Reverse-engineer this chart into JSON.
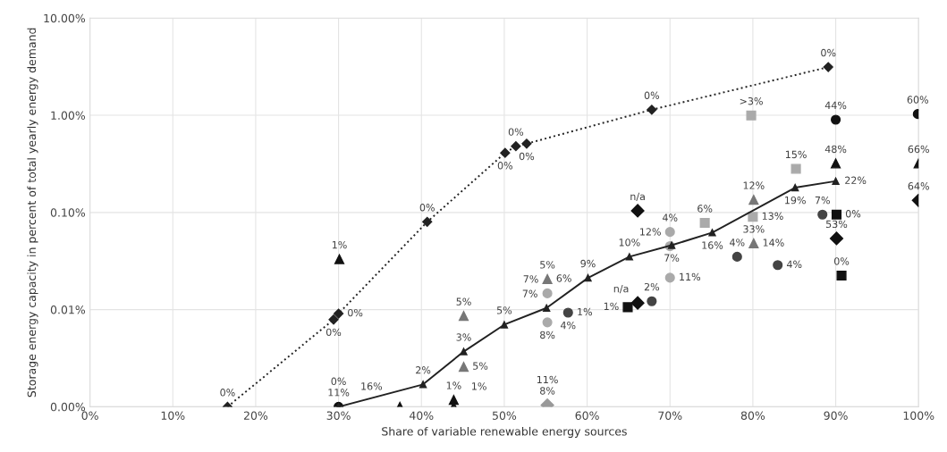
{
  "chart_data": {
    "type": "scatter",
    "xlabel": "Share of variable renewable energy sources",
    "ylabel": "Storage energy capacity in percent of total yearly energy demand",
    "log": "y",
    "grid": true,
    "xlim": [
      0,
      100
    ],
    "xticks": [
      {
        "value": 0,
        "label": "0%"
      },
      {
        "value": 10,
        "label": "10%"
      },
      {
        "value": 20,
        "label": "20%"
      },
      {
        "value": 30,
        "label": "30%"
      },
      {
        "value": 40,
        "label": "40%"
      },
      {
        "value": 50,
        "label": "50%"
      },
      {
        "value": 60,
        "label": "60%"
      },
      {
        "value": 70,
        "label": "70%"
      },
      {
        "value": 80,
        "label": "80%"
      },
      {
        "value": 90,
        "label": "90%"
      },
      {
        "value": 100,
        "label": "100%"
      }
    ],
    "ylim": [
      0.001,
      10
    ],
    "yticks": [
      {
        "value": 0.001,
        "label": "0.00%"
      },
      {
        "value": 0.01,
        "label": "0.01%"
      },
      {
        "value": 0.1,
        "label": "0.10%"
      },
      {
        "value": 1,
        "label": "1.00%"
      },
      {
        "value": 10,
        "label": "10.00%"
      }
    ],
    "series": [
      {
        "type": "line",
        "line_style": "dotted",
        "marker": "diamond",
        "color": "#222222",
        "x": [
          16.6,
          29.4,
          30.0,
          40.7,
          50.1,
          51.4,
          52.7,
          67.8,
          89.1
        ],
        "values": [
          0.001,
          0.0079,
          0.0091,
          0.08,
          0.41,
          0.48,
          0.51,
          1.14,
          3.13
        ]
      },
      {
        "type": "line",
        "line_style": "solid",
        "marker": "triangle",
        "color": "#222222",
        "x": [
          30.0,
          40.2,
          45.1,
          50.0,
          55.1,
          60.1,
          65.1,
          70.2,
          75.1,
          85.1,
          90.0
        ],
        "values": [
          0.001,
          0.0017,
          0.0037,
          0.007,
          0.0104,
          0.0212,
          0.035,
          0.046,
          0.062,
          0.18,
          0.21
        ]
      },
      {
        "marker": "triangle",
        "color": "#111111",
        "x": [
          30.1,
          37.4,
          43.9,
          43.9,
          90.0,
          100.0
        ],
        "values": [
          0.033,
          0.001,
          0.00118,
          0.001,
          0.319,
          0.319
        ]
      },
      {
        "marker": "triangle",
        "color": "#777777",
        "x": [
          45.1,
          45.1,
          55.2,
          80.1,
          80.1
        ],
        "values": [
          0.0086,
          0.00258,
          0.0206,
          0.135,
          0.048
        ]
      },
      {
        "marker": "circle",
        "color": "#111111",
        "x": [
          30.0,
          90.0,
          99.9
        ],
        "values": [
          0.001,
          0.9,
          1.03
        ]
      },
      {
        "marker": "circle",
        "color": "#444444",
        "x": [
          57.7,
          67.8,
          78.1,
          83.0,
          88.4
        ],
        "values": [
          0.0093,
          0.0122,
          0.035,
          0.0287,
          0.095
        ]
      },
      {
        "marker": "circle",
        "color": "#aaaaaa",
        "x": [
          55.2,
          55.2,
          70.0,
          70.0,
          70.0
        ],
        "values": [
          0.0147,
          0.0074,
          0.063,
          0.0213,
          0.045
        ]
      },
      {
        "marker": "diamond",
        "color": "#111111",
        "x": [
          66.1,
          66.1,
          90.1,
          100.0
        ],
        "values": [
          0.0117,
          0.104,
          0.054,
          0.133
        ]
      },
      {
        "marker": "diamond",
        "color": "#999999",
        "x": [
          55.2
        ],
        "values": [
          0.00104
        ]
      },
      {
        "marker": "square",
        "color": "#111111",
        "x": [
          64.9,
          90.1,
          90.7
        ],
        "values": [
          0.0106,
          0.095,
          0.0224
        ]
      },
      {
        "marker": "square",
        "color": "#aaaaaa",
        "x": [
          79.8,
          74.2,
          80.0,
          85.2
        ],
        "values": [
          0.995,
          0.078,
          0.09,
          0.281
        ]
      }
    ],
    "annotations": [
      {
        "text": "0%",
        "x": 16.6,
        "y": 0.001
      },
      {
        "text": "0%",
        "x": 29.4,
        "y": 0.0079
      },
      {
        "text": "0%",
        "x": 30.0,
        "y": 0.0091
      },
      {
        "text": "0%",
        "x": 40.7,
        "y": 0.08
      },
      {
        "text": "0%",
        "x": 50.1,
        "y": 0.41
      },
      {
        "text": "0%",
        "x": 51.4,
        "y": 0.48
      },
      {
        "text": "0%",
        "x": 52.7,
        "y": 0.51
      },
      {
        "text": "0%",
        "x": 67.8,
        "y": 1.14
      },
      {
        "text": "0%",
        "x": 89.1,
        "y": 3.13
      },
      {
        "text": "11%",
        "x": 30.0,
        "y": 0.001
      },
      {
        "text": "2%",
        "x": 40.2,
        "y": 0.0017
      },
      {
        "text": "3%",
        "x": 45.1,
        "y": 0.0037
      },
      {
        "text": "5%",
        "x": 50.0,
        "y": 0.007
      },
      {
        "text": "7%",
        "x": 55.1,
        "y": 0.0104
      },
      {
        "text": "9%",
        "x": 60.1,
        "y": 0.0212
      },
      {
        "text": "10%",
        "x": 65.1,
        "y": 0.035
      },
      {
        "text": "7%",
        "x": 70.2,
        "y": 0.046
      },
      {
        "text": "16%",
        "x": 75.1,
        "y": 0.062
      },
      {
        "text": "19%",
        "x": 85.1,
        "y": 0.18
      },
      {
        "text": "22%",
        "x": 90.0,
        "y": 0.21
      },
      {
        "text": "1%",
        "x": 30.1,
        "y": 0.033
      },
      {
        "text": "16%",
        "x": 37.4,
        "y": 0.001
      },
      {
        "text": "1%",
        "x": 43.9,
        "y": 0.00118
      },
      {
        "text": "1%",
        "x": 43.9,
        "y": 0.001
      },
      {
        "text": "48%",
        "x": 90.0,
        "y": 0.319
      },
      {
        "text": "66%",
        "x": 100.0,
        "y": 0.319
      },
      {
        "text": "5%",
        "x": 45.1,
        "y": 0.0086
      },
      {
        "text": "5%",
        "x": 45.1,
        "y": 0.00258
      },
      {
        "text": "5%",
        "x": 55.2,
        "y": 0.0206
      },
      {
        "text": "6%",
        "x": 55.2,
        "y": 0.0206
      },
      {
        "text": "12%",
        "x": 80.1,
        "y": 0.135
      },
      {
        "text": "33%",
        "x": 80.1,
        "y": 0.048
      },
      {
        "text": "14%",
        "x": 80.1,
        "y": 0.048
      },
      {
        "text": "0%",
        "x": 30.0,
        "y": 0.001
      },
      {
        "text": "44%",
        "x": 90.0,
        "y": 0.9
      },
      {
        "text": "60%",
        "x": 99.9,
        "y": 1.03
      },
      {
        "text": "1%",
        "x": 57.7,
        "y": 0.0093
      },
      {
        "text": "4%",
        "x": 57.7,
        "y": 0.0093
      },
      {
        "text": "2%",
        "x": 67.8,
        "y": 0.0122
      },
      {
        "text": "4%",
        "x": 78.1,
        "y": 0.035
      },
      {
        "text": "4%",
        "x": 83.0,
        "y": 0.0287
      },
      {
        "text": "7%",
        "x": 88.4,
        "y": 0.095
      },
      {
        "text": "7%",
        "x": 55.2,
        "y": 0.0147
      },
      {
        "text": "8%",
        "x": 55.2,
        "y": 0.0074
      },
      {
        "text": "4%",
        "x": 70.0,
        "y": 0.063
      },
      {
        "text": "11%",
        "x": 70.0,
        "y": 0.0213
      },
      {
        "text": "12%",
        "x": 70.0,
        "y": 0.045
      },
      {
        "text": "n/a",
        "x": 66.1,
        "y": 0.0117
      },
      {
        "text": "n/a",
        "x": 66.1,
        "y": 0.104
      },
      {
        "text": "53%",
        "x": 90.1,
        "y": 0.054
      },
      {
        "text": "64%",
        "x": 100.0,
        "y": 0.133
      },
      {
        "text": "8%",
        "x": 55.2,
        "y": 0.00104
      },
      {
        "text": "11%",
        "x": 55.2,
        "y": 0.00104
      },
      {
        "text": "1%",
        "x": 64.9,
        "y": 0.0106
      },
      {
        "text": "0%",
        "x": 90.1,
        "y": 0.095
      },
      {
        "text": "0%",
        "x": 90.7,
        "y": 0.0224
      },
      {
        "text": ">3%",
        "x": 79.8,
        "y": 0.995
      },
      {
        "text": "6%",
        "x": 74.2,
        "y": 0.078
      },
      {
        "text": "13%",
        "x": 80.0,
        "y": 0.09
      },
      {
        "text": "15%",
        "x": 85.2,
        "y": 0.281
      }
    ]
  }
}
